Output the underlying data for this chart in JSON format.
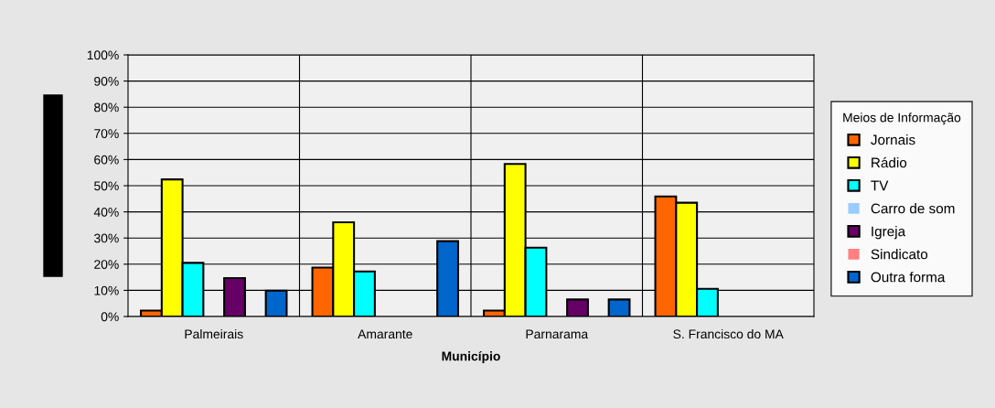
{
  "chart_data": {
    "type": "bar",
    "xlabel": "Município",
    "legend_title": "Meios de Informação",
    "legend": "right",
    "grid": "y",
    "categories": [
      "Palmeirais",
      "Amarante",
      "Parnarama",
      "S. Francisco do MA"
    ],
    "series": [
      {
        "name": "Jornais",
        "color": "#ff6600",
        "values": [
          2.3,
          18.7,
          2.3,
          45.9
        ]
      },
      {
        "name": "Rádio",
        "color": "#ffff00",
        "values": [
          52.4,
          36,
          58.3,
          43.5
        ]
      },
      {
        "name": "TV",
        "color": "#00ffff",
        "values": [
          20.5,
          17.2,
          26.3,
          10.6
        ]
      },
      {
        "name": "Carro de som",
        "color": "#99ccff",
        "values": [
          0,
          0,
          0,
          0
        ]
      },
      {
        "name": "Igreja",
        "color": "#660066",
        "values": [
          14.7,
          0,
          6.5,
          0
        ]
      },
      {
        "name": "Sindicato",
        "color": "#ff8080",
        "values": [
          0,
          0,
          0,
          0
        ]
      },
      {
        "name": "Outra forma",
        "color": "#0066cc",
        "values": [
          9.9,
          28.8,
          6.5,
          0
        ]
      }
    ],
    "ylim": [
      0,
      100
    ],
    "yticks": [
      {
        "value": 0,
        "label": "0%"
      },
      {
        "value": 10,
        "label": "10%"
      },
      {
        "value": 20,
        "label": "20%"
      },
      {
        "value": 30,
        "label": "30%"
      },
      {
        "value": 40,
        "label": "40%"
      },
      {
        "value": 50,
        "label": "50%"
      },
      {
        "value": 60,
        "label": "60%"
      },
      {
        "value": 70,
        "label": "70%"
      },
      {
        "value": 80,
        "label": "80%"
      },
      {
        "value": 90,
        "label": "90%"
      },
      {
        "value": 100,
        "label": "100%"
      }
    ]
  }
}
